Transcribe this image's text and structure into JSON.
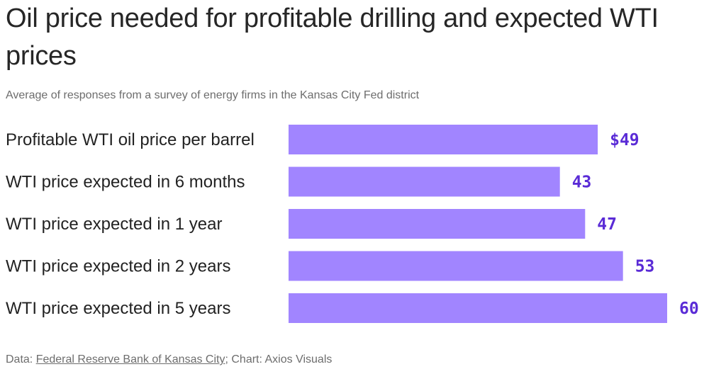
{
  "title": "Oil price needed for profitable drilling and expected WTI prices",
  "subtitle": "Average of responses from a survey of energy firms in the Kansas City Fed district",
  "footer": {
    "data_prefix": "Data: ",
    "source_link": "Federal Reserve Bank of Kansas City",
    "credit": "; Chart: Axios Visuals"
  },
  "colors": {
    "bar": "#a185ff",
    "value_text": "#5a2bd6"
  },
  "chart_data": {
    "type": "bar",
    "orientation": "horizontal",
    "categories": [
      "Profitable WTI oil price per barrel",
      "WTI price expected in 6 months",
      "WTI price expected in 1 year",
      "WTI price expected in 2 years",
      "WTI price expected in 5 years"
    ],
    "values": [
      49,
      43,
      47,
      53,
      60
    ],
    "value_labels": [
      "$49",
      "43",
      "47",
      "53",
      "60"
    ],
    "xlim": [
      0,
      60
    ],
    "grid": false,
    "legend": "none"
  }
}
